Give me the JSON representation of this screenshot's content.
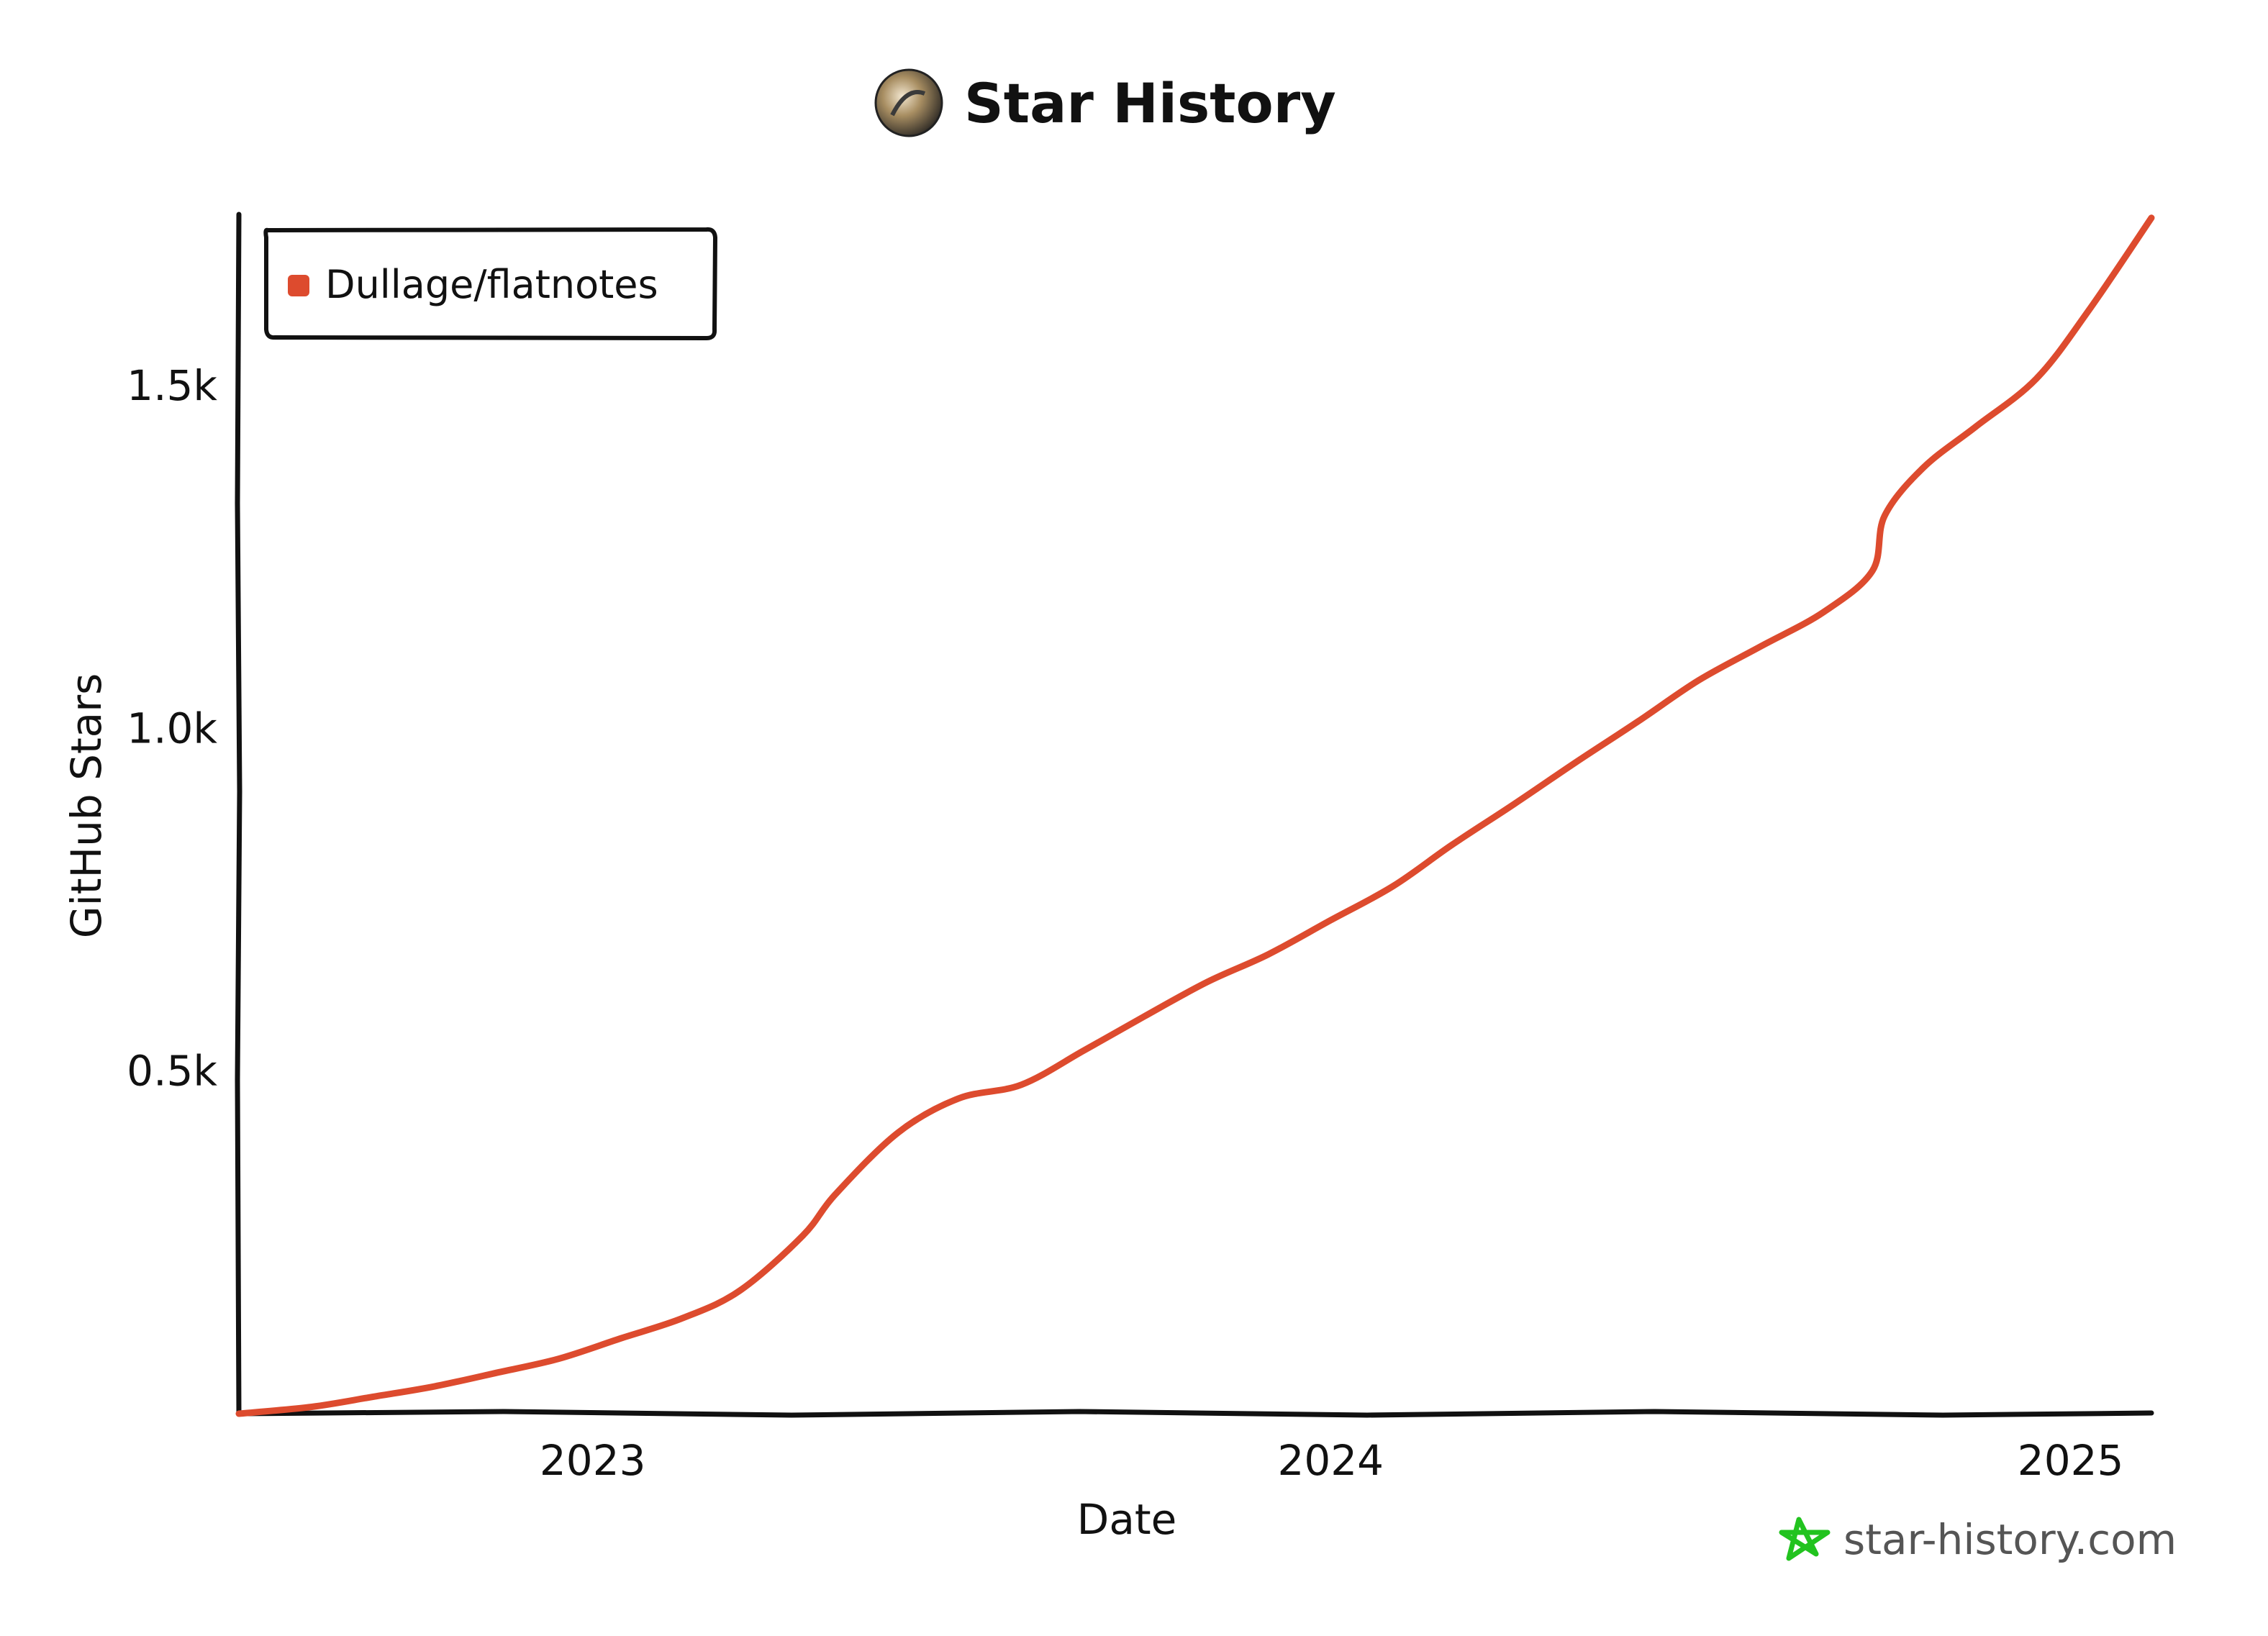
{
  "colors": {
    "series": "#dd4b2e",
    "axis": "#111111",
    "watermark_star": "#22c31f",
    "watermark_text": "#555555"
  },
  "icons": {
    "title_avatar": "avatar-icon",
    "watermark_logo": "star-history-logo-icon"
  },
  "chart_data": {
    "type": "line",
    "title": "Star History",
    "xlabel": "Date",
    "ylabel": "GitHub Stars",
    "x_range": [
      "2022-07-10",
      "2025-02-10"
    ],
    "ylim": [
      0,
      1750
    ],
    "x_ticks": [
      {
        "date": "2023-01-01",
        "label": "2023"
      },
      {
        "date": "2024-01-01",
        "label": "2024"
      },
      {
        "date": "2025-01-01",
        "label": "2025"
      }
    ],
    "y_ticks": [
      {
        "value": 500,
        "label": "0.5k"
      },
      {
        "value": 1000,
        "label": "1.0k"
      },
      {
        "value": 1500,
        "label": "1.5k"
      }
    ],
    "grid": false,
    "legend_position": "top-left",
    "series": [
      {
        "name": "Dullage/flatnotes",
        "points": [
          {
            "x": "2022-07-10",
            "y": 0
          },
          {
            "x": "2022-08-15",
            "y": 10
          },
          {
            "x": "2022-09-15",
            "y": 25
          },
          {
            "x": "2022-10-15",
            "y": 40
          },
          {
            "x": "2022-11-15",
            "y": 60
          },
          {
            "x": "2022-12-15",
            "y": 80
          },
          {
            "x": "2023-01-15",
            "y": 110
          },
          {
            "x": "2023-02-15",
            "y": 140
          },
          {
            "x": "2023-03-15",
            "y": 180
          },
          {
            "x": "2023-04-15",
            "y": 260
          },
          {
            "x": "2023-05-01",
            "y": 320
          },
          {
            "x": "2023-06-01",
            "y": 410
          },
          {
            "x": "2023-07-01",
            "y": 460
          },
          {
            "x": "2023-08-01",
            "y": 480
          },
          {
            "x": "2023-09-01",
            "y": 530
          },
          {
            "x": "2023-10-01",
            "y": 580
          },
          {
            "x": "2023-11-01",
            "y": 630
          },
          {
            "x": "2023-12-01",
            "y": 670
          },
          {
            "x": "2024-01-01",
            "y": 720
          },
          {
            "x": "2024-02-01",
            "y": 770
          },
          {
            "x": "2024-03-01",
            "y": 830
          },
          {
            "x": "2024-04-01",
            "y": 890
          },
          {
            "x": "2024-05-01",
            "y": 950
          },
          {
            "x": "2024-06-01",
            "y": 1010
          },
          {
            "x": "2024-07-01",
            "y": 1070
          },
          {
            "x": "2024-08-01",
            "y": 1120
          },
          {
            "x": "2024-09-01",
            "y": 1170
          },
          {
            "x": "2024-09-25",
            "y": 1230
          },
          {
            "x": "2024-10-01",
            "y": 1310
          },
          {
            "x": "2024-10-20",
            "y": 1380
          },
          {
            "x": "2024-11-15",
            "y": 1440
          },
          {
            "x": "2024-12-15",
            "y": 1510
          },
          {
            "x": "2025-01-10",
            "y": 1610
          },
          {
            "x": "2025-02-10",
            "y": 1745
          }
        ]
      }
    ]
  },
  "watermark": {
    "text": "star-history.com"
  }
}
